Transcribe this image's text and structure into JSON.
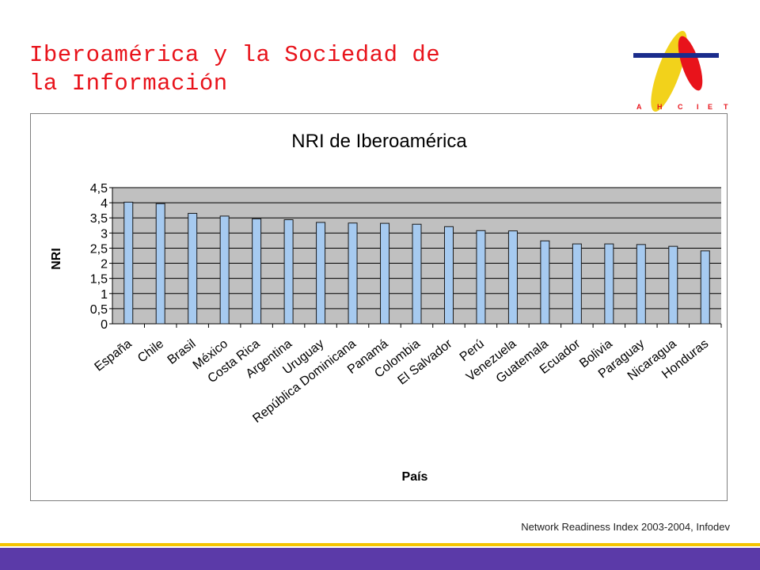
{
  "slide": {
    "title_line1": "Iberoamérica y la Sociedad de",
    "title_line2": "la Información",
    "source": "Network Readiness Index 2003-2004, Infodev"
  },
  "logo": {
    "text": "AHCIET",
    "colors": {
      "yellow": "#f2d21b",
      "red": "#e8131b",
      "blue": "#1a2c8c"
    }
  },
  "colors": {
    "bar_fill": "#a6caf0",
    "bar_stroke": "#1a1a1a",
    "plot_bg": "#c0c0c0",
    "footer": "#5b3aa8",
    "footer_accent": "#f5c400",
    "title": "#e8131b"
  },
  "chart_data": {
    "type": "bar",
    "title": "NRI de Iberoamérica",
    "xlabel": "País",
    "ylabel": "NRI",
    "ylim": [
      0,
      4.5
    ],
    "yticks": [
      "0",
      "0,5",
      "1",
      "1,5",
      "2",
      "2,5",
      "3",
      "3,5",
      "4",
      "4,5"
    ],
    "grid": true,
    "categories": [
      "España",
      "Chile",
      "Brasil",
      "México",
      "Costa Rica",
      "Argentina",
      "Uruguay",
      "República Dominicana",
      "Panamá",
      "Colombia",
      "El Salvador",
      "Perú",
      "Venezuela",
      "Guatemala",
      "Ecuador",
      "Bolivia",
      "Paraguay",
      "Nicaragua",
      "Honduras"
    ],
    "values": [
      4.02,
      3.97,
      3.65,
      3.56,
      3.47,
      3.44,
      3.35,
      3.33,
      3.32,
      3.29,
      3.21,
      3.08,
      3.07,
      2.74,
      2.64,
      2.64,
      2.62,
      2.56,
      2.41
    ]
  }
}
